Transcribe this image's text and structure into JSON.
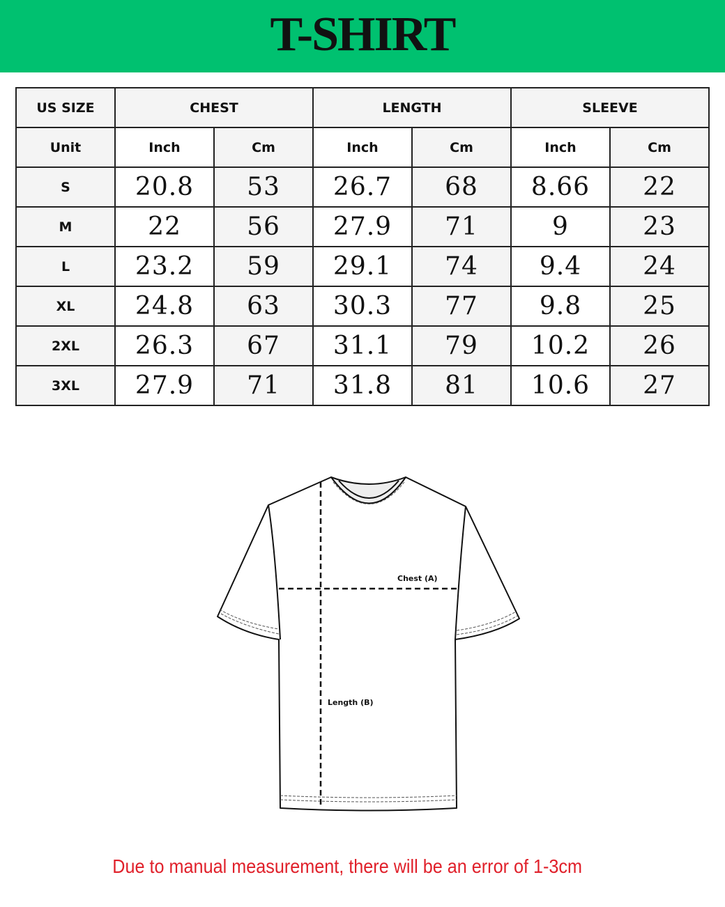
{
  "title": "T-SHIRT",
  "table": {
    "header": [
      "US SIZE",
      "CHEST",
      "LENGTH",
      "SLEEVE"
    ],
    "units": [
      "Unit",
      "Inch",
      "Cm",
      "Inch",
      "Cm",
      "Inch",
      "Cm"
    ],
    "rows": [
      [
        "S",
        "20.8",
        "53",
        "26.7",
        "68",
        "8.66",
        "22"
      ],
      [
        "M",
        "22",
        "56",
        "27.9",
        "71",
        "9",
        "23"
      ],
      [
        "L",
        "23.2",
        "59",
        "29.1",
        "74",
        "9.4",
        "24"
      ],
      [
        "XL",
        "24.8",
        "63",
        "30.3",
        "77",
        "9.8",
        "25"
      ],
      [
        "2XL",
        "26.3",
        "67",
        "31.1",
        "79",
        "10.2",
        "26"
      ],
      [
        "3XL",
        "27.9",
        "71",
        "31.8",
        "81",
        "10.6",
        "27"
      ]
    ]
  },
  "diagram": {
    "chest_label": "Chest (A)",
    "length_label": "Length (B)"
  },
  "note": "Due to manual measurement, there will be an error of 1-3cm",
  "colors": {
    "banner": "#00c170",
    "note": "#e0202a"
  }
}
